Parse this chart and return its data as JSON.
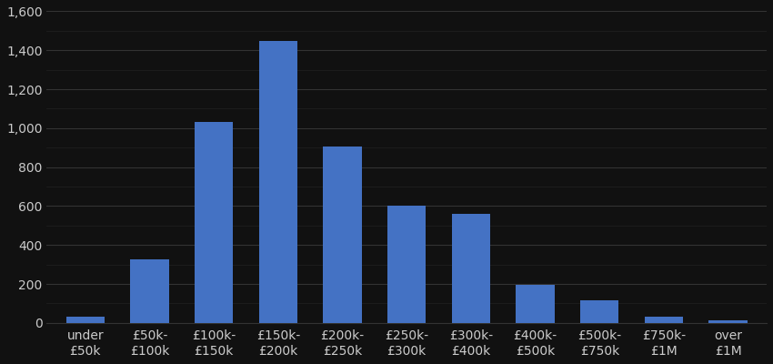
{
  "categories": [
    "under\n£50k",
    "£50k-\n£100k",
    "£100k-\n£150k",
    "£150k-\n£200k",
    "£200k-\n£250k",
    "£250k-\n£300k",
    "£300k-\n£400k",
    "£400k-\n£500k",
    "£500k-\n£750k",
    "£750k-\n£1M",
    "over\n£1M"
  ],
  "values": [
    30,
    325,
    1030,
    1450,
    905,
    600,
    560,
    195,
    115,
    30,
    15
  ],
  "bar_color": "#4472C4",
  "background_color": "#111111",
  "text_color": "#cccccc",
  "major_grid_color": "#333333",
  "minor_grid_color": "#222222",
  "ylim": [
    0,
    1600
  ],
  "yticks_major": [
    0,
    200,
    400,
    600,
    800,
    1000,
    1200,
    1400,
    1600
  ],
  "tick_fontsize": 10,
  "bar_width": 0.6
}
